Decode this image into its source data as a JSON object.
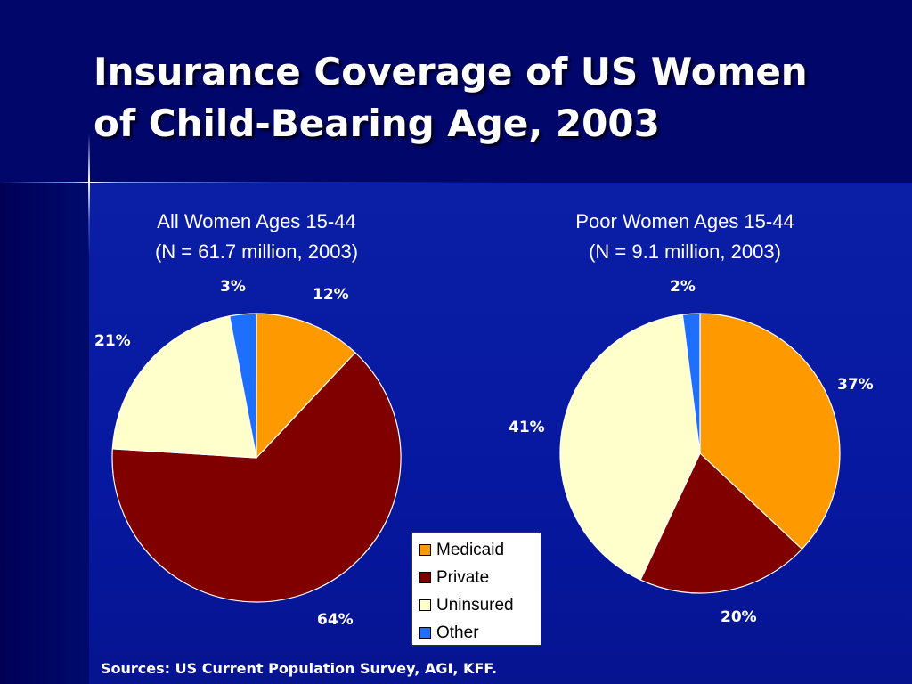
{
  "slide": {
    "title_line1": "Insurance Coverage of US Women",
    "title_line2": "of Child-Bearing Age, 2003",
    "sources": "Sources: US Current Population Survey, AGI, KFF."
  },
  "colors": {
    "Medicaid": "#ff9900",
    "Private": "#800000",
    "Uninsured": "#ffffcc",
    "Other": "#1f6fff"
  },
  "legend": [
    "Medicaid",
    "Private",
    "Uninsured",
    "Other"
  ],
  "chart_data": [
    {
      "type": "pie",
      "title_line1": "All Women Ages 15-44",
      "title_line2": "(N = 61.7 million, 2003)",
      "categories": [
        "Medicaid",
        "Private",
        "Uninsured",
        "Other"
      ],
      "values": [
        12,
        64,
        21,
        3
      ],
      "labels": [
        "12%",
        "64%",
        "21%",
        "3%"
      ]
    },
    {
      "type": "pie",
      "title_line1": "Poor Women Ages 15-44",
      "title_line2": "(N = 9.1 million, 2003)",
      "categories": [
        "Medicaid",
        "Private",
        "Uninsured",
        "Other"
      ],
      "values": [
        37,
        20,
        41,
        2
      ],
      "labels": [
        "37%",
        "20%",
        "41%",
        "2%"
      ]
    }
  ]
}
